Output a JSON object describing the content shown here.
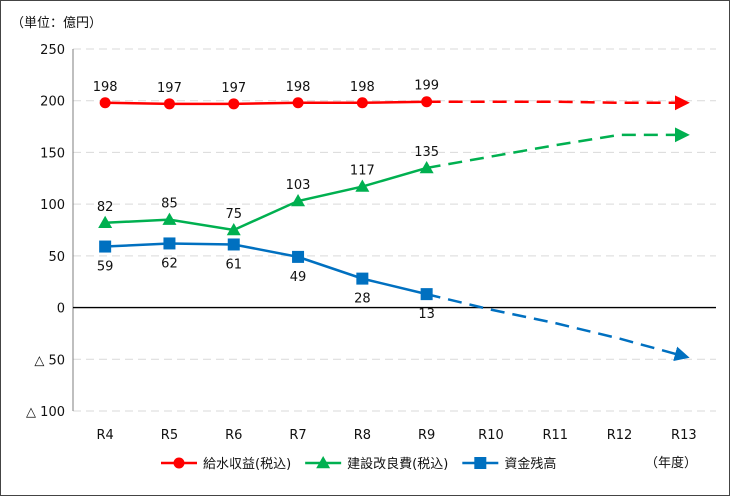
{
  "chart_data": {
    "type": "line",
    "unit_label": "（単位：億円）",
    "x_unit_label": "（年度）",
    "categories": [
      "R4",
      "R5",
      "R6",
      "R7",
      "R8",
      "R9",
      "R10",
      "R11",
      "R12",
      "R13"
    ],
    "ylim": [
      -100,
      250
    ],
    "y_ticks": [
      {
        "value": 250,
        "label": "250"
      },
      {
        "value": 200,
        "label": "200"
      },
      {
        "value": 150,
        "label": "150"
      },
      {
        "value": 100,
        "label": "100"
      },
      {
        "value": 50,
        "label": "50"
      },
      {
        "value": 0,
        "label": "0"
      },
      {
        "value": -50,
        "label": "△ 50"
      },
      {
        "value": -100,
        "label": "△ 100"
      }
    ],
    "grid": true,
    "legend_position": "bottom",
    "series": [
      {
        "name": "給水収益(税込)",
        "color": "#ff0000",
        "marker": "circle",
        "actual": {
          "x": [
            "R4",
            "R5",
            "R6",
            "R7",
            "R8",
            "R9"
          ],
          "values": [
            198,
            197,
            197,
            198,
            198,
            199
          ]
        },
        "projection": {
          "x": [
            "R9",
            "R10",
            "R11",
            "R12",
            "R13"
          ],
          "values": [
            199,
            199,
            199,
            198,
            198
          ]
        },
        "labels": [
          "198",
          "197",
          "197",
          "198",
          "198",
          "199"
        ],
        "label_position": "above"
      },
      {
        "name": "建設改良費(税込)",
        "color": "#00b050",
        "marker": "triangle",
        "actual": {
          "x": [
            "R4",
            "R5",
            "R6",
            "R7",
            "R8",
            "R9"
          ],
          "values": [
            82,
            85,
            75,
            103,
            117,
            135
          ]
        },
        "projection": {
          "x": [
            "R9",
            "R10",
            "R11",
            "R12",
            "R13"
          ],
          "values": [
            135,
            146,
            157,
            167,
            167
          ]
        },
        "labels": [
          "82",
          "85",
          "75",
          "103",
          "117",
          "135"
        ],
        "label_position": "above"
      },
      {
        "name": "資金残高",
        "color": "#0070c0",
        "marker": "square",
        "actual": {
          "x": [
            "R4",
            "R5",
            "R6",
            "R7",
            "R8",
            "R9"
          ],
          "values": [
            59,
            62,
            61,
            49,
            28,
            13
          ]
        },
        "projection": {
          "x": [
            "R9",
            "R10",
            "R11",
            "R12",
            "R13"
          ],
          "values": [
            13,
            -2,
            -15,
            -30,
            -47
          ]
        },
        "labels": [
          "59",
          "62",
          "61",
          "49",
          "28",
          "13"
        ],
        "label_position": "below"
      }
    ]
  }
}
